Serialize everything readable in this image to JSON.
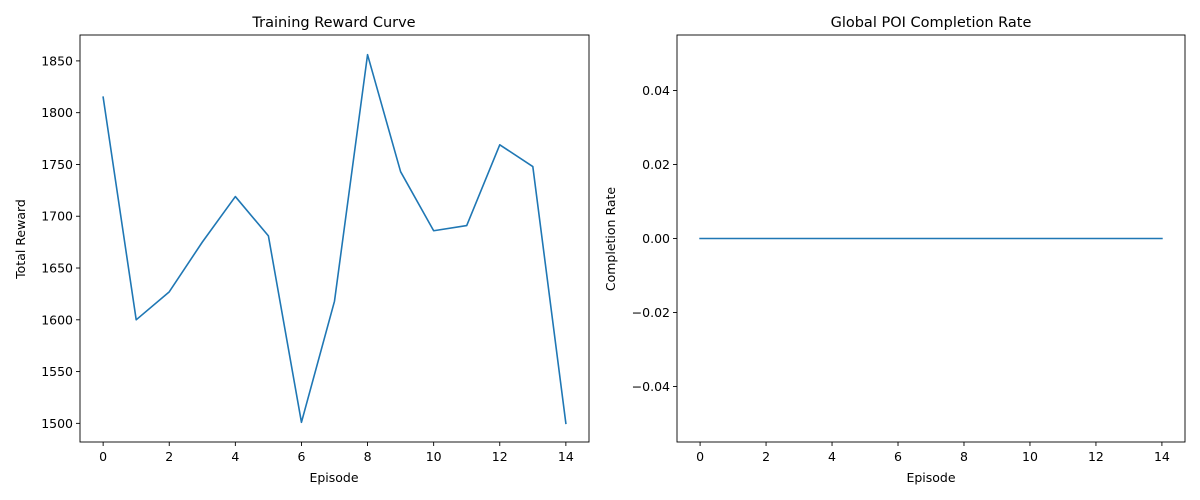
{
  "chart_data": [
    {
      "type": "line",
      "title": "Training Reward Curve",
      "xlabel": "Episode",
      "ylabel": "Total Reward",
      "x": [
        0,
        1,
        2,
        3,
        4,
        5,
        6,
        7,
        8,
        9,
        10,
        11,
        12,
        13,
        14
      ],
      "series": [
        {
          "values": [
            1815,
            1600,
            1627,
            1675,
            1719,
            1681,
            1501,
            1618,
            1856,
            1743,
            1686,
            1691,
            1769,
            1748,
            1500
          ]
        }
      ],
      "xlim": [
        -0.7,
        14.7
      ],
      "ylim": [
        1482,
        1875
      ],
      "xticks": [
        0,
        2,
        4,
        6,
        8,
        10,
        12,
        14
      ],
      "xtick_labels": [
        "0",
        "2",
        "4",
        "6",
        "8",
        "10",
        "12",
        "14"
      ],
      "yticks": [
        1500,
        1550,
        1600,
        1650,
        1700,
        1750,
        1800,
        1850
      ],
      "ytick_labels": [
        "1500",
        "1550",
        "1600",
        "1650",
        "1700",
        "1750",
        "1800",
        "1850"
      ],
      "grid": false,
      "line_color": "#1f77b4"
    },
    {
      "type": "line",
      "title": "Global POI Completion Rate",
      "xlabel": "Episode",
      "ylabel": "Completion Rate",
      "x": [
        0,
        1,
        2,
        3,
        4,
        5,
        6,
        7,
        8,
        9,
        10,
        11,
        12,
        13,
        14
      ],
      "series": [
        {
          "values": [
            0,
            0,
            0,
            0,
            0,
            0,
            0,
            0,
            0,
            0,
            0,
            0,
            0,
            0,
            0
          ]
        }
      ],
      "xlim": [
        -0.7,
        14.7
      ],
      "ylim": [
        -0.055,
        0.055
      ],
      "xticks": [
        0,
        2,
        4,
        6,
        8,
        10,
        12,
        14
      ],
      "xtick_labels": [
        "0",
        "2",
        "4",
        "6",
        "8",
        "10",
        "12",
        "14"
      ],
      "yticks": [
        -0.04,
        -0.02,
        0.0,
        0.02,
        0.04
      ],
      "ytick_labels": [
        "−0.04",
        "−0.02",
        "0.00",
        "0.02",
        "0.04"
      ],
      "grid": false,
      "line_color": "#1f77b4"
    }
  ]
}
